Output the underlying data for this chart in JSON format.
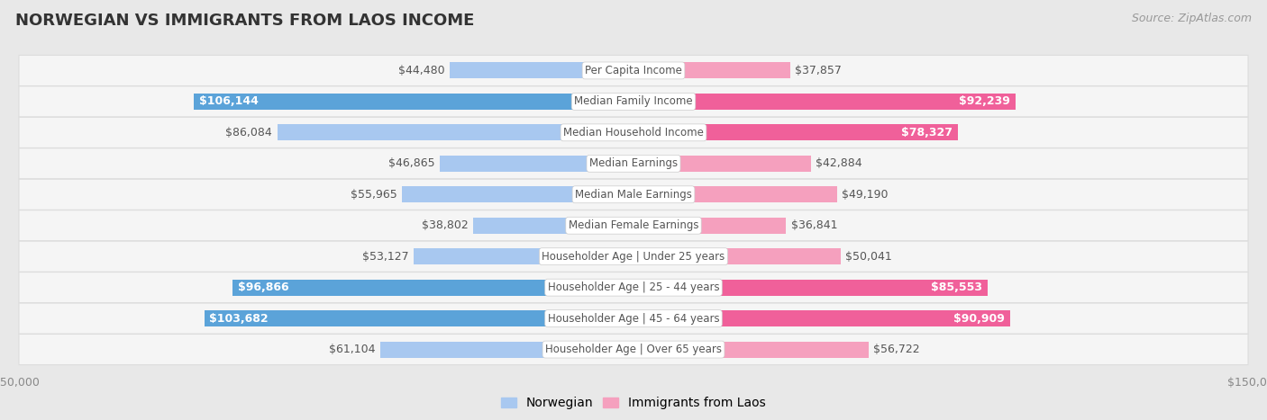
{
  "title": "NORWEGIAN VS IMMIGRANTS FROM LAOS INCOME",
  "source": "Source: ZipAtlas.com",
  "categories": [
    "Per Capita Income",
    "Median Family Income",
    "Median Household Income",
    "Median Earnings",
    "Median Male Earnings",
    "Median Female Earnings",
    "Householder Age | Under 25 years",
    "Householder Age | 25 - 44 years",
    "Householder Age | 45 - 64 years",
    "Householder Age | Over 65 years"
  ],
  "norwegian_values": [
    44480,
    106144,
    86084,
    46865,
    55965,
    38802,
    53127,
    96866,
    103682,
    61104
  ],
  "laos_values": [
    37857,
    92239,
    78327,
    42884,
    49190,
    36841,
    50041,
    85553,
    90909,
    56722
  ],
  "max_value": 150000,
  "norwegian_color_normal": "#a8c8f0",
  "norwegian_color_highlight": "#5ba3d9",
  "laos_color_normal": "#f5a0be",
  "laos_color_highlight": "#f0609a",
  "highlight_norwegian": [
    1,
    7,
    8
  ],
  "highlight_laos": [
    1,
    2,
    7,
    8
  ],
  "background_color": "#e8e8e8",
  "row_bg_color": "#f5f5f5",
  "row_border_color": "#dddddd",
  "label_box_color": "#ffffff",
  "label_text_color": "#555555",
  "value_text_color_normal": "#555555",
  "value_text_color_highlight_norw": "#ffffff",
  "value_text_color_highlight_laos": "#ffffff",
  "title_fontsize": 13,
  "source_fontsize": 9,
  "axis_label_fontsize": 9,
  "legend_fontsize": 10,
  "bar_label_fontsize": 9,
  "cat_label_fontsize": 8.5
}
